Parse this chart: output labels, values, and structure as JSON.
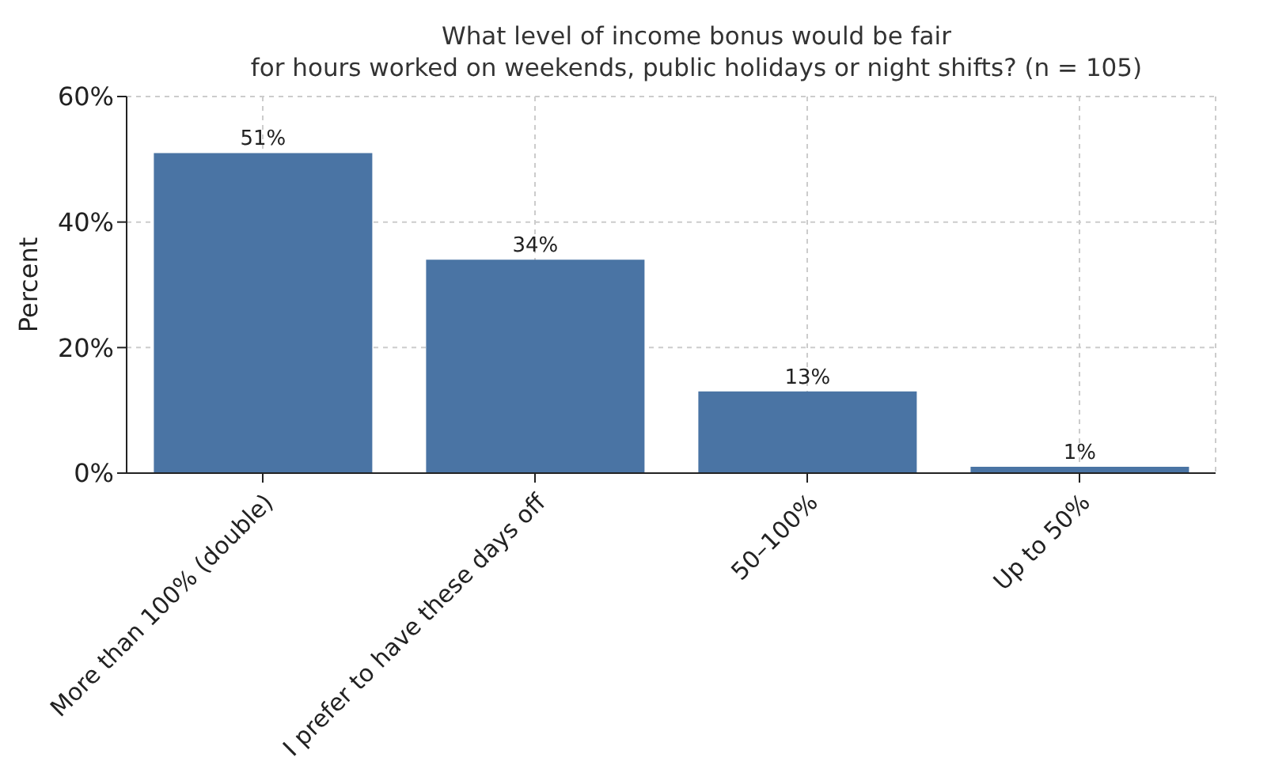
{
  "chart_data": {
    "type": "bar",
    "title": "What level of income bonus would be fair\nfor hours worked on weekends, public holidays or night shifts? (n = 105)",
    "ylabel": "Percent",
    "categories": [
      "More than 100% (double)",
      "I prefer to have these days off",
      "50–100%",
      "Up to 50%"
    ],
    "values": [
      51,
      34,
      13,
      1
    ],
    "color": "#4a74a4",
    "value_labels": [
      "51%",
      "34%",
      "13%",
      "1%"
    ],
    "ylim": [
      0,
      60
    ],
    "yticks": [
      {
        "value": 0,
        "label": "0%"
      },
      {
        "value": 20,
        "label": "20%"
      },
      {
        "value": 40,
        "label": "40%"
      },
      {
        "value": 60,
        "label": "60%"
      }
    ],
    "grid": true,
    "legend": false
  }
}
